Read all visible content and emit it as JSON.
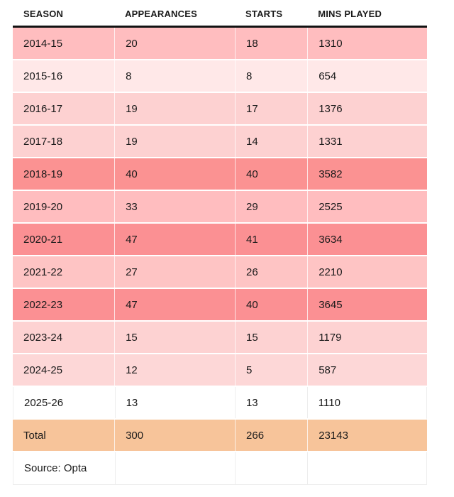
{
  "table": {
    "columns": [
      "SEASON",
      "APPEARANCES",
      "STARTS",
      "MINS PLAYED"
    ],
    "rows": [
      {
        "season": "2014-15",
        "appearances": "20",
        "starts": "18",
        "mins": "1310",
        "color": "#ffbdbf"
      },
      {
        "season": "2015-16",
        "appearances": "8",
        "starts": "8",
        "mins": "654",
        "color": "#ffe8e8"
      },
      {
        "season": "2016-17",
        "appearances": "19",
        "starts": "17",
        "mins": "1376",
        "color": "#fdd1d1"
      },
      {
        "season": "2017-18",
        "appearances": "19",
        "starts": "14",
        "mins": "1331",
        "color": "#fdd1d1"
      },
      {
        "season": "2018-19",
        "appearances": "40",
        "starts": "40",
        "mins": "3582",
        "color": "#fb9292"
      },
      {
        "season": "2019-20",
        "appearances": "33",
        "starts": "29",
        "mins": "2525",
        "color": "#ffbdbf"
      },
      {
        "season": "2020-21",
        "appearances": "47",
        "starts": "41",
        "mins": "3634",
        "color": "#fb9093"
      },
      {
        "season": "2021-22",
        "appearances": "27",
        "starts": "26",
        "mins": "2210",
        "color": "#fec4c4"
      },
      {
        "season": "2022-23",
        "appearances": "47",
        "starts": "40",
        "mins": "3645",
        "color": "#fb9093"
      },
      {
        "season": "2023-24",
        "appearances": "15",
        "starts": "15",
        "mins": "1179",
        "color": "#fdd2d2"
      },
      {
        "season": "2024-25",
        "appearances": "12",
        "starts": "5",
        "mins": "587",
        "color": "#fdd7d7"
      },
      {
        "season": "2025-26",
        "appearances": "13",
        "starts": "13",
        "mins": "1110",
        "color": "#ffffff"
      }
    ],
    "total": {
      "label": "Total",
      "appearances": "300",
      "starts": "266",
      "mins": "23143",
      "color": "#f7c49a"
    },
    "source": "Source: Opta",
    "colors": {
      "header_rule": "#121212",
      "text": "#1a1a1a",
      "heat_dark": "#fb9093",
      "heat_mid": "#ffbdbf",
      "heat_light": "#fdd1d1",
      "heat_lightest": "#ffe8e8",
      "total_row": "#f7c49a"
    }
  },
  "chart_data": {
    "type": "table",
    "columns": [
      "SEASON",
      "APPEARANCES",
      "STARTS",
      "MINS PLAYED"
    ],
    "rows": [
      [
        "2014-15",
        20,
        18,
        1310
      ],
      [
        "2015-16",
        8,
        8,
        654
      ],
      [
        "2016-17",
        19,
        17,
        1376
      ],
      [
        "2017-18",
        19,
        14,
        1331
      ],
      [
        "2018-19",
        40,
        40,
        3582
      ],
      [
        "2019-20",
        33,
        29,
        2525
      ],
      [
        "2020-21",
        47,
        41,
        3634
      ],
      [
        "2021-22",
        27,
        26,
        2210
      ],
      [
        "2022-23",
        47,
        40,
        3645
      ],
      [
        "2023-24",
        15,
        15,
        1179
      ],
      [
        "2024-25",
        12,
        5,
        587
      ],
      [
        "2025-26",
        13,
        13,
        1110
      ]
    ],
    "total_row": [
      "Total",
      300,
      266,
      23143
    ],
    "source": "Source: Opta",
    "layout": {
      "row_shading": "heatmap per row: darker red = higher values, white = 2025-26 current season, orange = total row",
      "grid": "thin white separators between cells, 3px black rule under header"
    }
  }
}
